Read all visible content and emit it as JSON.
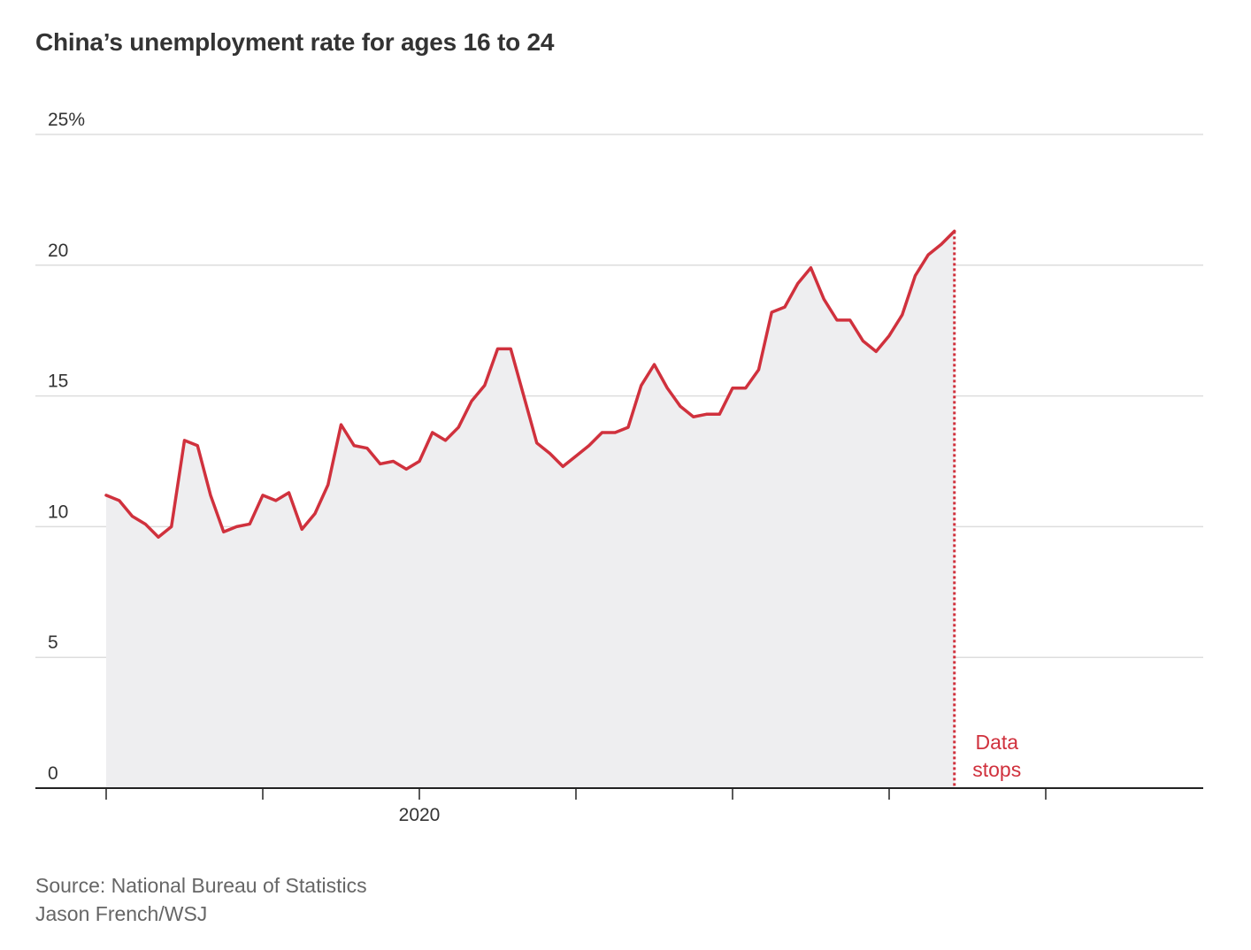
{
  "title": "China’s unemployment rate for ages 16 to 24",
  "source_line": "Source: National Bureau of Statistics",
  "credit_line": "Jason French/WSJ",
  "colors": {
    "line": "#d0313d",
    "area": "#eeeef0",
    "grid": "#dddddd",
    "axis": "#222222",
    "text": "#333333",
    "muted": "#666666"
  },
  "chart_data": {
    "type": "area",
    "title": "China’s unemployment rate for ages 16 to 24",
    "xlabel": "",
    "ylabel": "",
    "ylim": [
      0,
      25
    ],
    "xlim": [
      0,
      84
    ],
    "yticks": [
      {
        "value": 0,
        "label": "0"
      },
      {
        "value": 5,
        "label": "5"
      },
      {
        "value": 10,
        "label": "10"
      },
      {
        "value": 15,
        "label": "15"
      },
      {
        "value": 20,
        "label": "20"
      },
      {
        "value": 25,
        "label": "25%"
      }
    ],
    "xticks": [
      {
        "value": 0,
        "label": ""
      },
      {
        "value": 12,
        "label": ""
      },
      {
        "value": 24,
        "label": "2020"
      },
      {
        "value": 36,
        "label": ""
      },
      {
        "value": 48,
        "label": ""
      },
      {
        "value": 60,
        "label": ""
      },
      {
        "value": 72,
        "label": ""
      }
    ],
    "series": [
      {
        "name": "Unemployment rate, ages 16-24 (%)",
        "x": [
          0,
          1,
          2,
          3,
          4,
          5,
          6,
          7,
          8,
          9,
          10,
          11,
          12,
          13,
          14,
          15,
          16,
          17,
          18,
          19,
          20,
          21,
          22,
          23,
          24,
          25,
          26,
          27,
          28,
          29,
          30,
          31,
          32,
          33,
          34,
          35,
          36,
          37,
          38,
          39,
          40,
          41,
          42,
          43,
          44,
          45,
          46,
          47,
          48,
          49,
          50,
          51,
          52,
          53,
          54,
          55,
          56,
          57,
          58,
          59,
          60,
          61,
          62,
          63,
          64,
          65
        ],
        "values": [
          11.2,
          11.0,
          10.4,
          10.1,
          9.6,
          10.0,
          13.3,
          13.1,
          11.2,
          9.8,
          10.0,
          10.1,
          11.2,
          11.0,
          11.3,
          9.9,
          10.5,
          11.6,
          13.9,
          13.1,
          13.0,
          12.4,
          12.5,
          12.2,
          12.5,
          13.6,
          13.3,
          13.8,
          14.8,
          15.4,
          16.8,
          16.8,
          15.0,
          13.2,
          12.8,
          12.3,
          12.7,
          13.1,
          13.6,
          13.6,
          13.8,
          15.4,
          16.2,
          15.3,
          14.6,
          14.2,
          14.3,
          14.3,
          15.3,
          15.3,
          16.0,
          18.2,
          18.4,
          19.3,
          19.9,
          18.7,
          17.9,
          17.9,
          17.1,
          16.7,
          17.3,
          18.1,
          19.6,
          20.4,
          20.8,
          21.3
        ]
      }
    ],
    "annotations": [
      {
        "type": "vline",
        "x": 65,
        "style": "dotted",
        "label_line1": "Data",
        "label_line2": "stops"
      }
    ]
  }
}
